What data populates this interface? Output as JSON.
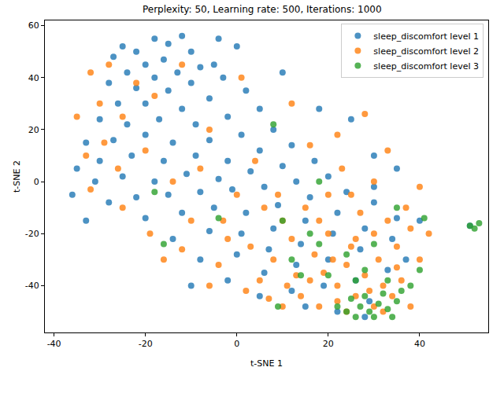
{
  "chart_data": {
    "type": "scatter",
    "title": "Perplexity: 50, Learning rate: 500, Iterations: 1000",
    "x_label": "t-SNE 1",
    "y_label": "t-SNE 2",
    "xlim": [
      -42,
      55
    ],
    "ylim": [
      -58,
      62
    ],
    "xticks": [
      -40,
      -20,
      0,
      20,
      40
    ],
    "yticks": [
      -40,
      -20,
      0,
      20,
      40,
      60
    ],
    "grid": false,
    "legend": "upper right",
    "marker": "circle",
    "series": [
      {
        "name": "sleep_discomfort level 1",
        "color": "#1f77b4",
        "x": [
          -25,
          -22,
          -18,
          -15,
          -12,
          -27,
          -20,
          -16,
          -10,
          -8,
          -24,
          -18,
          -13,
          -5,
          -28,
          -22,
          -15,
          -10,
          -3,
          -26,
          -20,
          -12,
          -6,
          2,
          -30,
          -24,
          -17,
          -9,
          -2,
          5,
          -33,
          -27,
          -20,
          -14,
          -6,
          1,
          8,
          -35,
          -30,
          -23,
          -16,
          -9,
          -2,
          5,
          12,
          -36,
          -31,
          -25,
          -18,
          -11,
          -4,
          3,
          10,
          17,
          -28,
          -22,
          -15,
          -8,
          -1,
          6,
          13,
          20,
          -20,
          -12,
          -5,
          2,
          9,
          16,
          24,
          -14,
          -6,
          1,
          8,
          15,
          22,
          30,
          -8,
          0,
          7,
          14,
          21,
          28,
          35,
          -2,
          6,
          13,
          20,
          27,
          34,
          5,
          12,
          19,
          26,
          33,
          15,
          22,
          29,
          18,
          25,
          30,
          35,
          0,
          -4,
          10,
          30,
          -33,
          40,
          51,
          -10,
          37,
          28
        ],
        "values": [
          52,
          50,
          55,
          53,
          56,
          48,
          45,
          47,
          50,
          44,
          42,
          40,
          42,
          45,
          38,
          36,
          35,
          38,
          40,
          30,
          30,
          28,
          32,
          35,
          24,
          22,
          24,
          22,
          25,
          28,
          15,
          16,
          18,
          15,
          16,
          18,
          20,
          5,
          8,
          10,
          8,
          10,
          8,
          12,
          14,
          -5,
          0,
          2,
          0,
          3,
          1,
          4,
          6,
          8,
          -8,
          -6,
          -5,
          -4,
          -3,
          -2,
          0,
          2,
          -14,
          -12,
          -10,
          -12,
          -9,
          -6,
          -4,
          -22,
          -19,
          -20,
          -18,
          -15,
          -12,
          -8,
          -30,
          -28,
          -26,
          -24,
          -20,
          -18,
          -14,
          -38,
          -35,
          -32,
          -30,
          -26,
          -22,
          -44,
          -42,
          -40,
          -38,
          -34,
          -48,
          -50,
          -46,
          28,
          24,
          10,
          5,
          52,
          55,
          42,
          -2,
          -15,
          -15,
          -17,
          -40,
          -30,
          -52
        ]
      },
      {
        "name": "sleep_discomfort level 2",
        "color": "#ff7f0e",
        "x": [
          -32,
          -28,
          -22,
          -30,
          -25,
          -35,
          -18,
          -29,
          -20,
          -32,
          -25,
          -19,
          -12,
          -14,
          -8,
          -3,
          -10,
          0,
          3,
          -4,
          -6,
          2,
          8,
          5,
          10,
          12,
          15,
          17,
          19,
          22,
          24,
          26,
          28,
          30,
          32,
          34,
          36,
          25,
          30,
          35,
          38,
          40,
          27,
          20,
          23,
          30,
          33,
          40,
          22,
          16,
          28,
          37,
          14,
          18,
          22,
          10,
          24,
          32,
          38,
          16,
          20,
          13,
          7,
          26,
          31,
          42,
          35,
          18,
          9,
          4,
          -6,
          12,
          -2,
          -16,
          6,
          29,
          21,
          11,
          33,
          25,
          -26,
          -33,
          1,
          -12
        ],
        "values": [
          42,
          45,
          38,
          30,
          25,
          25,
          33,
          15,
          12,
          -3,
          -10,
          -20,
          -26,
          0,
          5,
          -15,
          -15,
          -5,
          -25,
          -32,
          -40,
          -42,
          -30,
          -38,
          -15,
          -22,
          -10,
          -28,
          -35,
          -40,
          -32,
          -44,
          -36,
          -48,
          -40,
          -44,
          -38,
          -25,
          -20,
          -25,
          -18,
          -30,
          -12,
          -5,
          5,
          0,
          12,
          -2,
          18,
          14,
          26,
          -10,
          -44,
          -48,
          -46,
          -48,
          -50,
          -50,
          -48,
          -38,
          -20,
          -36,
          -45,
          -22,
          -30,
          -20,
          -33,
          -15,
          -5,
          8,
          20,
          30,
          -22,
          -30,
          -10,
          -42,
          -30,
          -40,
          -15,
          -5,
          5,
          10,
          40,
          45
        ]
      },
      {
        "name": "sleep_discomfort level 3",
        "color": "#2ca02c",
        "x": [
          25,
          27,
          29,
          31,
          33,
          35,
          28,
          32,
          24,
          30,
          34,
          26,
          36,
          38,
          22,
          20,
          26,
          33,
          28,
          24,
          30,
          18,
          14,
          16,
          12,
          8,
          10,
          -18,
          -16,
          -4,
          51,
          52,
          53,
          41,
          18,
          35,
          40,
          9
        ],
        "values": [
          -45,
          -48,
          -50,
          -47,
          -49,
          -46,
          -44,
          -43,
          -50,
          -52,
          -52,
          -52,
          -42,
          -40,
          -48,
          -36,
          -38,
          -38,
          -34,
          -28,
          -24,
          -24,
          -36,
          -20,
          -30,
          22,
          -15,
          -4,
          -24,
          -14,
          -17,
          -18,
          -16,
          -14,
          0,
          -10,
          -34,
          -48
        ]
      }
    ]
  }
}
